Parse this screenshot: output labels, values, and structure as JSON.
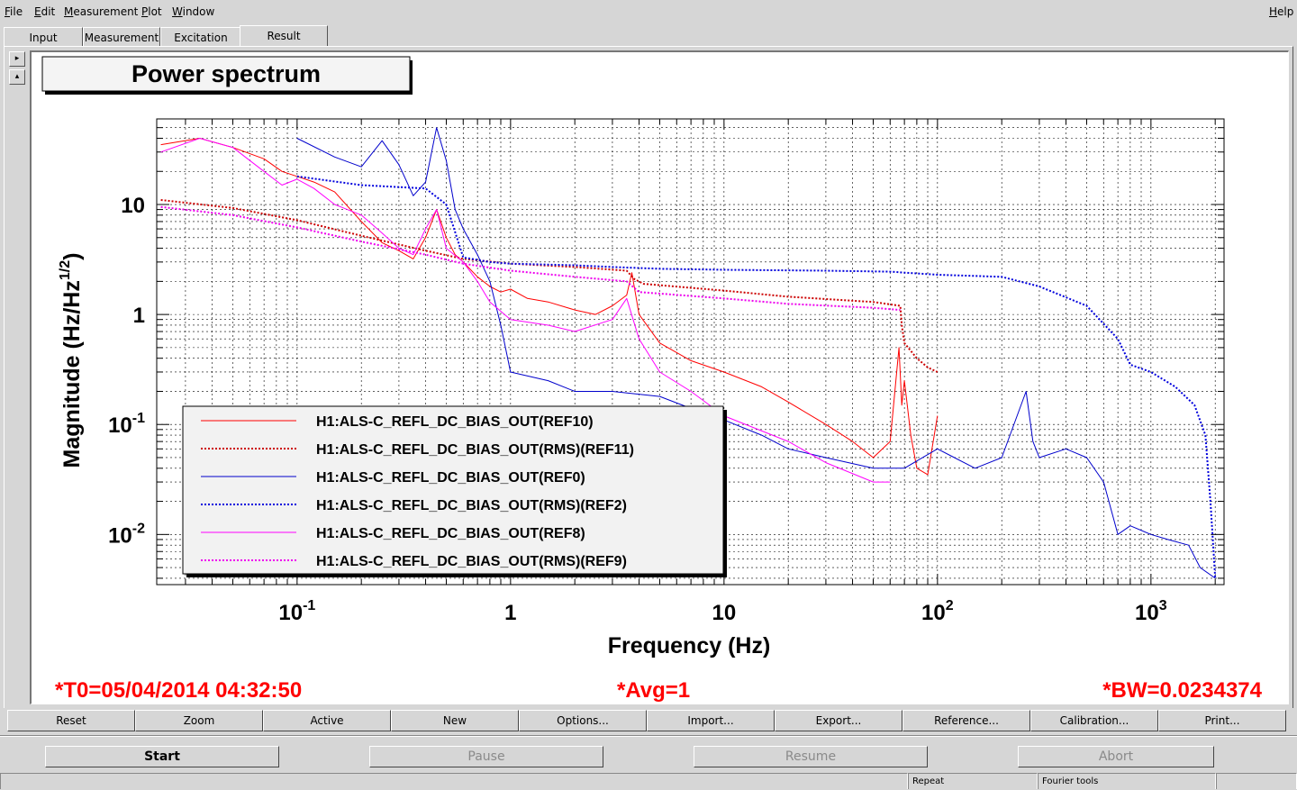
{
  "menubar": {
    "items": [
      "File",
      "Edit",
      "Measurement",
      "Plot",
      "Window"
    ],
    "help": "Help"
  },
  "tabs": [
    {
      "label": "Input"
    },
    {
      "label": "Measurement"
    },
    {
      "label": "Excitation"
    },
    {
      "label": "Result",
      "active": true
    }
  ],
  "side_buttons": [
    "▸",
    "▴"
  ],
  "plot": {
    "title_box": "Power spectrum",
    "t0": "*T0=05/04/2014 04:32:50",
    "avg": "*Avg=1",
    "bw": "*BW=0.0234374"
  },
  "chart_data": {
    "type": "line",
    "xlabel": "Frequency (Hz)",
    "ylabel": "Magnitude (Hz/Hz",
    "ylabel_sup": "1/2",
    "ylabel_close": ")",
    "x_scale": "log",
    "y_scale": "log",
    "xlim": [
      0.022,
      2200
    ],
    "ylim": [
      0.0035,
      60
    ],
    "grid": true,
    "legend_position": "bottom-left",
    "x_ticks": [
      {
        "value": 0.1,
        "base": "10",
        "exp": "-1"
      },
      {
        "value": 1,
        "base": "1",
        "exp": ""
      },
      {
        "value": 10,
        "base": "10",
        "exp": ""
      },
      {
        "value": 100,
        "base": "10",
        "exp": "2"
      },
      {
        "value": 1000,
        "base": "10",
        "exp": "3"
      }
    ],
    "y_ticks": [
      {
        "value": 0.01,
        "base": "10",
        "exp": "-2"
      },
      {
        "value": 0.1,
        "base": "10",
        "exp": "-1"
      },
      {
        "value": 1,
        "base": "1",
        "exp": ""
      },
      {
        "value": 10,
        "base": "10",
        "exp": ""
      }
    ],
    "series": [
      {
        "name": "H1:ALS-C_REFL_DC_BIAS_OUT(REF10)",
        "color": "#ff0000",
        "style": "solid",
        "width": 1,
        "x": [
          0.023,
          0.035,
          0.05,
          0.07,
          0.085,
          0.1,
          0.12,
          0.15,
          0.2,
          0.25,
          0.3,
          0.35,
          0.4,
          0.45,
          0.5,
          0.55,
          0.6,
          0.7,
          0.8,
          0.9,
          1,
          1.2,
          1.5,
          2,
          2.5,
          3,
          3.5,
          3.7,
          4,
          5,
          7,
          10,
          15,
          20,
          30,
          40,
          50,
          60,
          66,
          68,
          70,
          75,
          80,
          90,
          100
        ],
        "y": [
          35,
          40,
          33,
          26,
          20,
          18,
          16,
          13,
          7,
          4.5,
          3.8,
          3.2,
          5,
          9,
          5,
          3.5,
          3,
          2.2,
          1.8,
          1.6,
          1.7,
          1.4,
          1.3,
          1.1,
          1.0,
          1.2,
          1.5,
          2.4,
          1.0,
          0.55,
          0.38,
          0.3,
          0.22,
          0.16,
          0.1,
          0.07,
          0.05,
          0.07,
          0.5,
          0.15,
          0.25,
          0.08,
          0.04,
          0.035,
          0.12
        ]
      },
      {
        "name": "H1:ALS-C_REFL_DC_BIAS_OUT(RMS)(REF11)",
        "color": "#cc0000",
        "style": "dotted",
        "width": 2,
        "x": [
          0.023,
          0.05,
          0.1,
          0.2,
          0.4,
          0.6,
          1,
          2,
          3.5,
          3.8,
          4.2,
          10,
          20,
          50,
          67,
          68,
          70,
          80,
          90,
          100
        ],
        "y": [
          11,
          9.3,
          7.2,
          5.2,
          3.8,
          3.2,
          2.9,
          2.7,
          2.5,
          2.1,
          1.9,
          1.65,
          1.45,
          1.3,
          1.2,
          0.8,
          0.55,
          0.4,
          0.33,
          0.3
        ]
      },
      {
        "name": "H1:ALS-C_REFL_DC_BIAS_OUT(REF0)",
        "color": "#0000cc",
        "style": "solid",
        "width": 1,
        "x": [
          0.1,
          0.15,
          0.2,
          0.25,
          0.3,
          0.35,
          0.4,
          0.45,
          0.5,
          0.55,
          0.6,
          0.7,
          0.8,
          0.9,
          1,
          1.5,
          2,
          3,
          5,
          7,
          10,
          15,
          20,
          30,
          50,
          70,
          100,
          120,
          150,
          200,
          260,
          280,
          300,
          400,
          500,
          600,
          700,
          800,
          1000,
          1200,
          1500,
          1700,
          2000
        ],
        "y": [
          40,
          27,
          22,
          38,
          23,
          12,
          16,
          50,
          25,
          9,
          6,
          3.5,
          2.0,
          0.8,
          0.3,
          0.25,
          0.2,
          0.2,
          0.18,
          0.14,
          0.11,
          0.08,
          0.06,
          0.05,
          0.04,
          0.04,
          0.06,
          0.05,
          0.04,
          0.05,
          0.2,
          0.07,
          0.05,
          0.06,
          0.05,
          0.03,
          0.01,
          0.012,
          0.01,
          0.009,
          0.008,
          0.005,
          0.004
        ]
      },
      {
        "name": "H1:ALS-C_REFL_DC_BIAS_OUT(RMS)(REF2)",
        "color": "#0000dd",
        "style": "dotted",
        "width": 2,
        "x": [
          0.1,
          0.2,
          0.4,
          0.5,
          0.6,
          0.8,
          1,
          2,
          3,
          5,
          10,
          30,
          60,
          100,
          200,
          300,
          500,
          700,
          800,
          1000,
          1300,
          1600,
          1800,
          1900,
          2000
        ],
        "y": [
          18,
          15,
          14,
          10,
          3.3,
          3.0,
          2.9,
          2.8,
          2.7,
          2.6,
          2.55,
          2.5,
          2.45,
          2.3,
          2.2,
          1.8,
          1.2,
          0.6,
          0.35,
          0.3,
          0.22,
          0.15,
          0.08,
          0.02,
          0.004
        ]
      },
      {
        "name": "H1:ALS-C_REFL_DC_BIAS_OUT(REF8)",
        "color": "#ff00ff",
        "style": "solid",
        "width": 1,
        "x": [
          0.023,
          0.035,
          0.05,
          0.07,
          0.085,
          0.1,
          0.12,
          0.15,
          0.2,
          0.25,
          0.3,
          0.35,
          0.4,
          0.45,
          0.5,
          0.6,
          0.7,
          0.8,
          1,
          1.5,
          2,
          3,
          3.5,
          4,
          5,
          7,
          10,
          20,
          30,
          50,
          60
        ],
        "y": [
          30,
          40,
          33,
          20,
          15,
          17,
          14,
          10,
          8,
          5.5,
          4.0,
          3.5,
          6,
          9,
          4,
          3,
          2.0,
          1.3,
          0.9,
          0.8,
          0.7,
          0.9,
          1.4,
          0.6,
          0.3,
          0.2,
          0.12,
          0.07,
          0.045,
          0.03,
          0.03
        ]
      },
      {
        "name": "H1:ALS-C_REFL_DC_BIAS_OUT(RMS)(REF9)",
        "color": "#ee00ee",
        "style": "dotted",
        "width": 2,
        "x": [
          0.023,
          0.05,
          0.1,
          0.2,
          0.4,
          0.6,
          1,
          2,
          3.5,
          4,
          10,
          20,
          50,
          67
        ],
        "y": [
          9.5,
          8.0,
          6.2,
          4.6,
          3.5,
          2.9,
          2.5,
          2.2,
          2.0,
          1.6,
          1.4,
          1.25,
          1.15,
          1.1
        ]
      }
    ]
  },
  "bottom_buttons": [
    "Reset",
    "Zoom",
    "Active",
    "New",
    "Options...",
    "Import...",
    "Export...",
    "Reference...",
    "Calibration...",
    "Print..."
  ],
  "control_buttons": [
    {
      "label": "Start",
      "enabled": true
    },
    {
      "label": "Pause",
      "enabled": false
    },
    {
      "label": "Resume",
      "enabled": false
    },
    {
      "label": "Abort",
      "enabled": false
    }
  ],
  "status": {
    "repeat": "Repeat",
    "fourier": "Fourier tools"
  }
}
